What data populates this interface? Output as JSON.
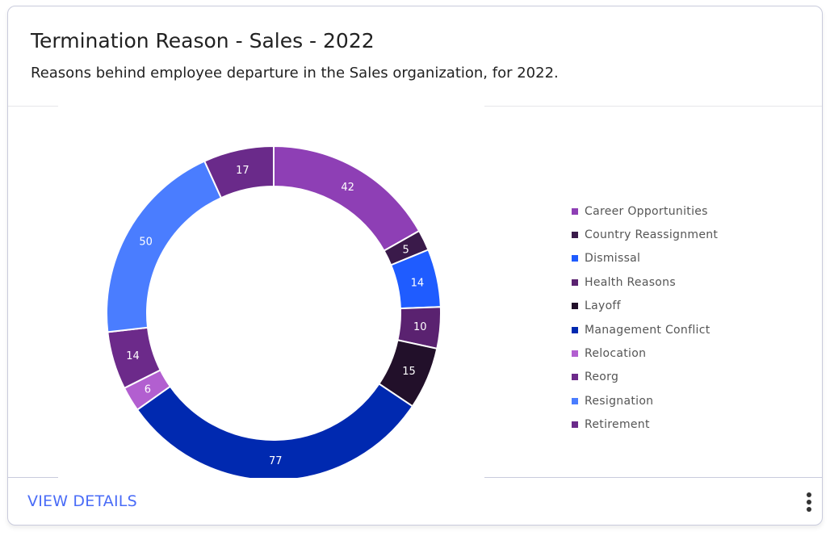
{
  "header": {
    "title": "Termination Reason - Sales - 2022",
    "subtitle": "Reasons behind employee departure in the Sales organization, for 2022."
  },
  "footer": {
    "view_details": "VIEW DETAILS",
    "more_icon": "vertical-ellipsis-icon"
  },
  "chart_data": {
    "type": "pie",
    "variant": "donut",
    "legend_position": "right",
    "categories": [
      "Career Opportunities",
      "Country Reassignment",
      "Dismissal",
      "Health Reasons",
      "Layoff",
      "Management Conflict",
      "Relocation",
      "Reorg",
      "Resignation",
      "Retirement"
    ],
    "values": [
      42,
      5,
      14,
      10,
      15,
      77,
      6,
      14,
      50,
      17
    ],
    "colors": [
      "#8e3fb5",
      "#3a1a4a",
      "#1f5cff",
      "#5a2270",
      "#22102a",
      "#0029b0",
      "#b25fd0",
      "#6c2a8a",
      "#4a7dff",
      "#6a2a8a"
    ]
  }
}
